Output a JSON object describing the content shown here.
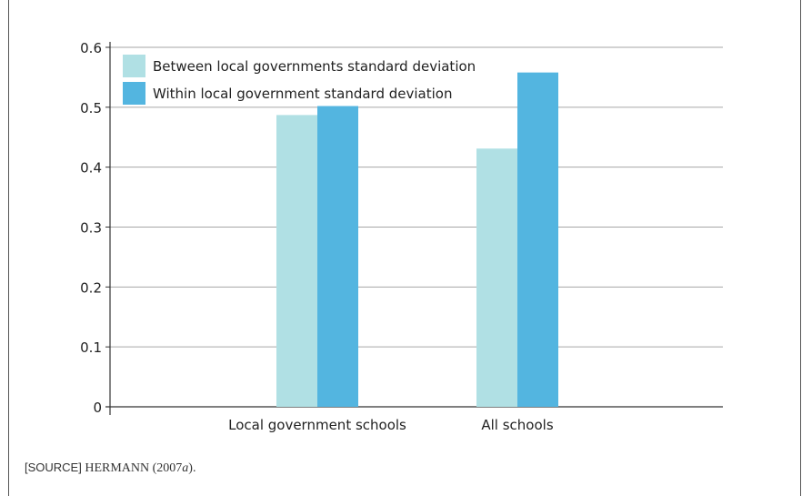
{
  "chart_data": {
    "type": "bar",
    "categories": [
      "Local government schools",
      "All schools"
    ],
    "series": [
      {
        "name": "Between local governments standard deviation",
        "color": "#b0e0e4",
        "values": [
          0.487,
          0.431
        ]
      },
      {
        "name": "Within local government standard deviation",
        "color": "#53b5e0",
        "values": [
          0.502,
          0.558
        ]
      }
    ],
    "ylim": [
      0,
      0.6
    ],
    "yticks": [
      "0",
      "0.1",
      "0.2",
      "0.3",
      "0.4",
      "0.5",
      "0.6"
    ],
    "grid": true,
    "legend": "top-left",
    "xlabel": "",
    "ylabel": "",
    "title": ""
  },
  "source": {
    "tag": "[SOURCE]",
    "author": "HERMANN (2007",
    "suffix": "a",
    "end": ")."
  }
}
